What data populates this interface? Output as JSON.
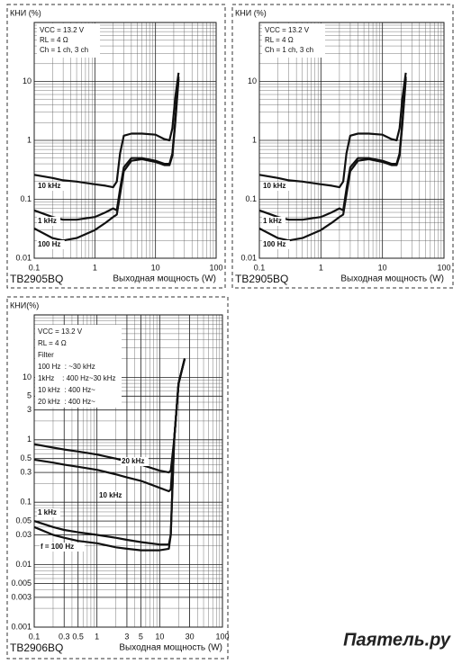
{
  "chart_data": [
    {
      "type": "line",
      "model": "TB2905BQ",
      "y_label": "КНИ (%)",
      "x_label": "Выходная мощность (W)",
      "notes": [
        "VCC = 13.2 V",
        "RL = 4 Ω",
        "Ch = 1 ch, 3 ch"
      ],
      "log_x": true,
      "log_y": true,
      "grid": true,
      "minor_grid": true,
      "xlim": [
        0.1,
        100
      ],
      "xticks": [
        0.1,
        1,
        10,
        100
      ],
      "ylim": [
        0.01,
        100
      ],
      "yticks": [
        0.01,
        0.1,
        1,
        10
      ],
      "x": [
        0.1,
        0.2,
        0.3,
        0.5,
        1,
        1.5,
        2,
        2.3,
        2.6,
        3,
        4,
        6,
        10,
        14,
        17,
        19,
        21,
        24
      ],
      "series": [
        {
          "name": "10 kHz",
          "color": "#111111",
          "values": [
            0.26,
            0.23,
            0.21,
            0.2,
            0.18,
            0.17,
            0.16,
            0.2,
            0.6,
            1.2,
            1.3,
            1.3,
            1.25,
            1.05,
            1.0,
            1.6,
            5,
            14
          ]
        },
        {
          "name": "1 kHz",
          "color": "#111111",
          "values": [
            0.065,
            0.05,
            0.045,
            0.045,
            0.05,
            0.06,
            0.07,
            0.065,
            0.15,
            0.35,
            0.5,
            0.5,
            0.45,
            0.4,
            0.4,
            0.6,
            2,
            12
          ]
        },
        {
          "name": "100 Hz",
          "color": "#111111",
          "values": [
            0.032,
            0.022,
            0.02,
            0.022,
            0.03,
            0.04,
            0.05,
            0.055,
            0.12,
            0.3,
            0.45,
            0.48,
            0.43,
            0.38,
            0.38,
            0.55,
            1.8,
            11
          ]
        }
      ]
    },
    {
      "type": "line",
      "model": "TB2905BQ",
      "y_label": "КНИ (%)",
      "x_label": "Выходная мощность (W)",
      "notes": [
        "VCC = 13.2 V",
        "RL = 4 Ω",
        "Ch = 1 ch, 3 ch"
      ],
      "log_x": true,
      "log_y": true,
      "grid": true,
      "minor_grid": true,
      "xlim": [
        0.1,
        100
      ],
      "xticks": [
        0.1,
        1,
        10,
        100
      ],
      "ylim": [
        0.01,
        100
      ],
      "yticks": [
        0.01,
        0.1,
        1,
        10
      ],
      "x": [
        0.1,
        0.2,
        0.3,
        0.5,
        1,
        1.5,
        2,
        2.3,
        2.6,
        3,
        4,
        6,
        10,
        14,
        17,
        19,
        21,
        24
      ],
      "series": [
        {
          "name": "10 kHz",
          "color": "#111111",
          "values": [
            0.26,
            0.23,
            0.21,
            0.2,
            0.18,
            0.17,
            0.16,
            0.2,
            0.6,
            1.2,
            1.3,
            1.3,
            1.25,
            1.05,
            1.0,
            1.6,
            5,
            14
          ]
        },
        {
          "name": "1 kHz",
          "color": "#111111",
          "values": [
            0.065,
            0.05,
            0.045,
            0.045,
            0.05,
            0.06,
            0.07,
            0.065,
            0.15,
            0.35,
            0.5,
            0.5,
            0.45,
            0.4,
            0.4,
            0.6,
            2,
            12
          ]
        },
        {
          "name": "100 Hz",
          "color": "#111111",
          "values": [
            0.032,
            0.022,
            0.02,
            0.022,
            0.03,
            0.04,
            0.05,
            0.055,
            0.12,
            0.3,
            0.45,
            0.48,
            0.43,
            0.38,
            0.38,
            0.55,
            1.8,
            11
          ]
        }
      ]
    },
    {
      "type": "line",
      "model": "TB2906BQ",
      "y_label": "КНИ(%)",
      "x_label": "Выходная мощность (W)",
      "notes": [
        "VCC = 13.2 V",
        "RL = 4 Ω",
        "Filter",
        "100 Hz  : ~30 kHz",
        "1kHz    : 400 Hz~30 kHz",
        "10 kHz  : 400 Hz~",
        "20 kHz  : 400 Hz~"
      ],
      "log_x": true,
      "log_y": true,
      "grid": true,
      "minor_grid": true,
      "xlim": [
        0.1,
        100
      ],
      "xticks": [
        0.1,
        0.3,
        0.5,
        1,
        3,
        5,
        10,
        30,
        100
      ],
      "ylim": [
        0.001,
        100
      ],
      "yticks": [
        0.001,
        0.003,
        0.005,
        0.01,
        0.03,
        0.05,
        0.1,
        0.3,
        0.5,
        1,
        3,
        5,
        10
      ],
      "x": [
        0.1,
        0.2,
        0.3,
        0.5,
        1,
        2,
        3,
        5,
        10,
        14,
        15,
        17,
        20,
        25
      ],
      "series": [
        {
          "name": "20 kHz",
          "color": "#111111",
          "values": [
            0.85,
            0.75,
            0.7,
            0.65,
            0.58,
            0.5,
            0.45,
            0.4,
            0.32,
            0.3,
            0.32,
            1,
            8,
            20
          ]
        },
        {
          "name": "10 kHz",
          "color": "#111111",
          "values": [
            0.48,
            0.43,
            0.4,
            0.37,
            0.33,
            0.28,
            0.25,
            0.22,
            0.17,
            0.15,
            0.16,
            1,
            8,
            20
          ]
        },
        {
          "name": "1 kHz",
          "color": "#111111",
          "values": [
            0.05,
            0.04,
            0.036,
            0.033,
            0.03,
            0.027,
            0.025,
            0.023,
            0.021,
            0.021,
            0.03,
            1,
            8,
            20
          ]
        },
        {
          "name": "f = 100 Hz",
          "color": "#111111",
          "values": [
            0.04,
            0.03,
            0.027,
            0.024,
            0.022,
            0.019,
            0.018,
            0.017,
            0.017,
            0.018,
            0.03,
            1,
            8,
            20
          ]
        }
      ]
    }
  ],
  "watermark": "Паятель.ру"
}
